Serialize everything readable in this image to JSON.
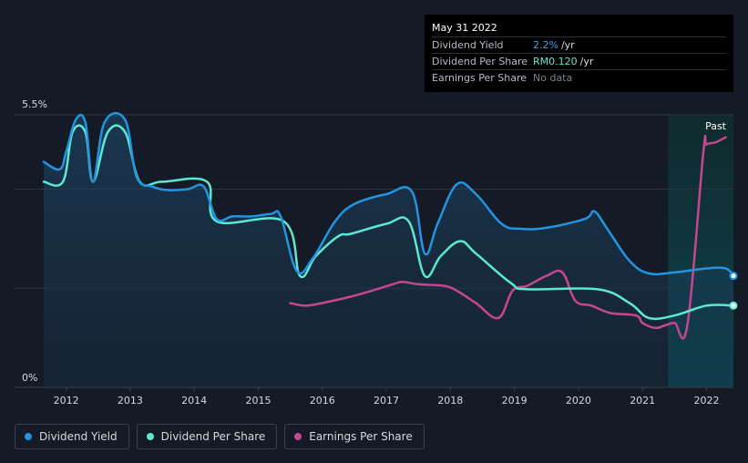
{
  "chart_data": {
    "type": "line",
    "y_axis": {
      "ylim": [
        0,
        5.5
      ],
      "tick_labels": [
        "5.5%",
        "0%"
      ]
    },
    "x_axis": {
      "xlim": [
        2011.65,
        2022.42
      ],
      "tick_labels": [
        "2012",
        "2013",
        "2014",
        "2015",
        "2016",
        "2017",
        "2018",
        "2019",
        "2020",
        "2021",
        "2022"
      ]
    },
    "past_label": "Past",
    "past_start": 2021.4,
    "series": [
      {
        "name": "Dividend Yield",
        "color": "#2394df",
        "x": [
          2011.65,
          2011.9,
          2012.0,
          2012.15,
          2012.3,
          2012.42,
          2012.6,
          2012.92,
          2013.1,
          2013.35,
          2013.6,
          2013.9,
          2014.15,
          2014.35,
          2014.6,
          2014.9,
          2015.2,
          2015.35,
          2015.6,
          2015.85,
          2016.2,
          2016.5,
          2017.0,
          2017.4,
          2017.6,
          2017.8,
          2018.1,
          2018.4,
          2018.8,
          2019.1,
          2019.5,
          2020.1,
          2020.25,
          2020.45,
          2020.8,
          2021.1,
          2021.5,
          2022.0,
          2022.3,
          2022.42
        ],
        "y": [
          4.55,
          4.4,
          4.75,
          5.4,
          5.35,
          4.15,
          5.35,
          5.4,
          4.25,
          4.05,
          3.98,
          4.0,
          4.05,
          3.4,
          3.45,
          3.45,
          3.5,
          3.45,
          2.35,
          2.6,
          3.35,
          3.7,
          3.9,
          3.95,
          2.7,
          3.3,
          4.1,
          3.9,
          3.3,
          3.2,
          3.22,
          3.4,
          3.55,
          3.2,
          2.55,
          2.3,
          2.32,
          2.4,
          2.4,
          2.25
        ]
      },
      {
        "name": "Dividend Per Share",
        "color": "#5de8d2",
        "x": [
          2011.65,
          2011.95,
          2012.1,
          2012.3,
          2012.42,
          2012.65,
          2012.92,
          2013.15,
          2013.5,
          2014.2,
          2014.35,
          2015.4,
          2015.65,
          2015.9,
          2016.25,
          2016.45,
          2017.0,
          2017.35,
          2017.6,
          2017.85,
          2018.15,
          2018.4,
          2018.95,
          2019.2,
          2020.3,
          2020.8,
          2021.1,
          2021.5,
          2022.0,
          2022.42
        ],
        "y": [
          4.15,
          4.15,
          5.15,
          5.15,
          4.15,
          5.15,
          5.15,
          4.15,
          4.15,
          4.15,
          3.35,
          3.35,
          2.25,
          2.65,
          3.05,
          3.1,
          3.3,
          3.35,
          2.25,
          2.65,
          2.95,
          2.7,
          2.1,
          1.98,
          1.98,
          1.7,
          1.4,
          1.45,
          1.65,
          1.65
        ]
      },
      {
        "name": "Earnings Per Share",
        "color": "#c7468f",
        "x": [
          2015.5,
          2015.75,
          2016.1,
          2016.5,
          2016.9,
          2017.1,
          2017.25,
          2017.5,
          2017.9,
          2018.1,
          2018.4,
          2018.75,
          2018.97,
          2019.2,
          2019.5,
          2019.75,
          2019.95,
          2020.2,
          2020.5,
          2020.9,
          2021.0,
          2021.2,
          2021.35,
          2021.5,
          2021.7,
          2021.95,
          2022.0,
          2022.15,
          2022.3
        ],
        "y": [
          1.7,
          1.65,
          1.73,
          1.85,
          2.0,
          2.08,
          2.13,
          2.08,
          2.05,
          1.95,
          1.7,
          1.4,
          1.95,
          2.05,
          2.25,
          2.32,
          1.75,
          1.65,
          1.5,
          1.45,
          1.3,
          1.2,
          1.25,
          1.3,
          1.25,
          4.75,
          4.9,
          4.95,
          5.05
        ]
      }
    ]
  },
  "tooltip": {
    "date": "May 31 2022",
    "rows": [
      {
        "label": "Dividend Yield",
        "value": "2.2%",
        "unit": "/yr",
        "color": "#3fa0f0"
      },
      {
        "label": "Dividend Per Share",
        "value": "RM0.120",
        "unit": "/yr",
        "color": "#5de8d2"
      },
      {
        "label": "Earnings Per Share",
        "value": "No data",
        "unit": "",
        "color": "#7d828b"
      }
    ]
  },
  "legend": [
    {
      "label": "Dividend Yield",
      "color": "#2394df"
    },
    {
      "label": "Dividend Per Share",
      "color": "#5de8d2"
    },
    {
      "label": "Earnings Per Share",
      "color": "#c7468f"
    }
  ]
}
